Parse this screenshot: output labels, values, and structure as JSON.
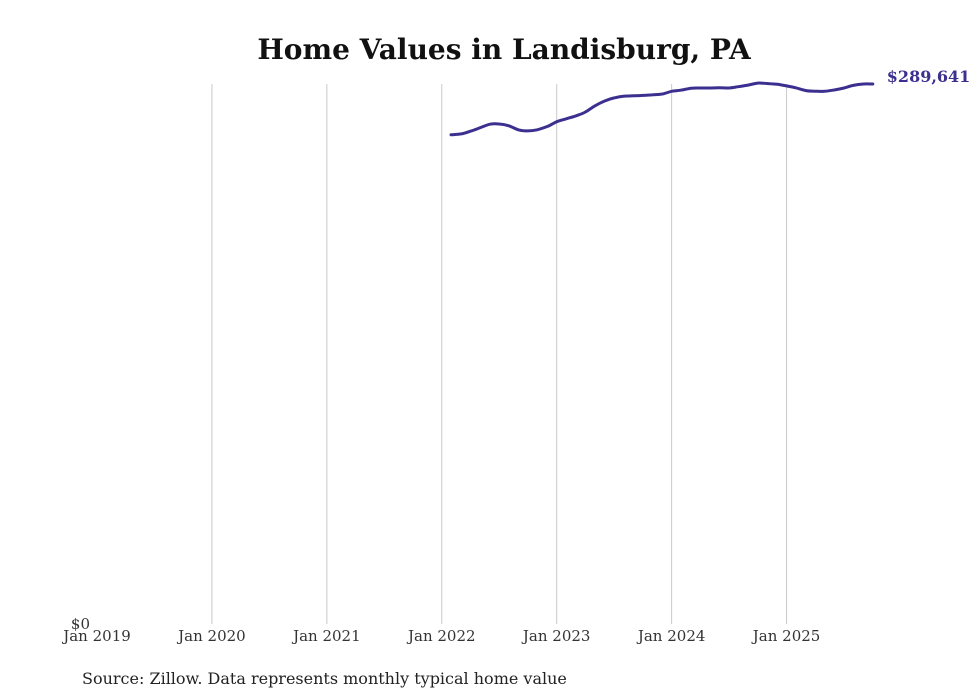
{
  "chart_data": {
    "type": "line",
    "title": "Home Values in Landisburg, PA",
    "xlabel": "",
    "ylabel": "",
    "x_ticks": [
      {
        "label": "Jan 2019",
        "t": 2019.0
      },
      {
        "label": "Jan 2020",
        "t": 2020.0
      },
      {
        "label": "Jan 2021",
        "t": 2021.0
      },
      {
        "label": "Jan 2022",
        "t": 2022.0
      },
      {
        "label": "Jan 2023",
        "t": 2023.0
      },
      {
        "label": "Jan 2024",
        "t": 2024.0
      },
      {
        "label": "Jan 2025",
        "t": 2025.0
      }
    ],
    "xlim": [
      2019.0,
      2025.9
    ],
    "ylim": [
      0,
      289641
    ],
    "y_tick_label": "$0",
    "grid": "vertical",
    "series": [
      {
        "name": "Typical home value",
        "color": "#3b2f8f",
        "x": [
          2022.08,
          2022.17,
          2022.25,
          2022.33,
          2022.42,
          2022.5,
          2022.58,
          2022.67,
          2022.75,
          2022.83,
          2022.92,
          2023.0,
          2023.08,
          2023.17,
          2023.25,
          2023.33,
          2023.42,
          2023.5,
          2023.58,
          2023.67,
          2023.75,
          2023.83,
          2023.92,
          2024.0,
          2024.08,
          2024.17,
          2024.25,
          2024.33,
          2024.42,
          2024.5,
          2024.58,
          2024.67,
          2024.75,
          2024.83,
          2024.92,
          2025.0,
          2025.08,
          2025.17,
          2025.25,
          2025.33,
          2025.42,
          2025.5,
          2025.58,
          2025.67,
          2025.75
        ],
        "values": [
          262400,
          262900,
          264300,
          266100,
          268100,
          268200,
          267300,
          265000,
          264500,
          265100,
          266900,
          269400,
          270900,
          272600,
          274600,
          277800,
          280600,
          282200,
          283100,
          283300,
          283500,
          283800,
          284300,
          285700,
          286300,
          287400,
          287500,
          287500,
          287600,
          287500,
          288200,
          289100,
          290100,
          289900,
          289500,
          288600,
          287600,
          286100,
          285800,
          285700,
          286500,
          287500,
          288900,
          289641,
          289641
        ]
      }
    ],
    "end_label": "$289,641",
    "source": "Source: Zillow. Data represents monthly typical home value"
  }
}
